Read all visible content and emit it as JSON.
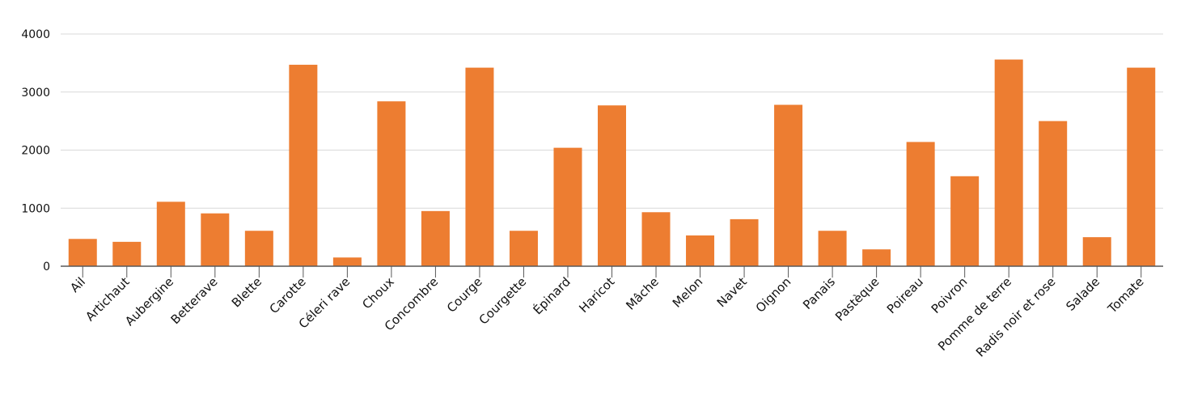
{
  "chart_data": {
    "type": "bar",
    "title": "",
    "xlabel": "",
    "ylabel": "",
    "ylim": [
      0,
      4000
    ],
    "yticks": [
      "0",
      "1000",
      "2000",
      "3000",
      "4000"
    ],
    "grid": true,
    "legend": "none",
    "bar_color": "#ED7D31",
    "categories": [
      "Ail",
      "Artichaut",
      "Aubergine",
      "Betterave",
      "Blette",
      "Carotte",
      "Céleri rave",
      "Choux",
      "Concombre",
      "Courge",
      "Courgette",
      "Épinard",
      "Haricot",
      "Mâche",
      "Melon",
      "Navet",
      "Oignon",
      "Panais",
      "Pastèque",
      "Poireau",
      "Poivron",
      "Pomme de terre",
      "Radis noir et rose",
      "Salade",
      "Tomate"
    ],
    "values": [
      470,
      420,
      1110,
      910,
      610,
      3470,
      150,
      2840,
      950,
      3420,
      610,
      2040,
      2770,
      930,
      530,
      810,
      2780,
      610,
      290,
      2140,
      1550,
      3560,
      2500,
      500,
      3420
    ]
  }
}
